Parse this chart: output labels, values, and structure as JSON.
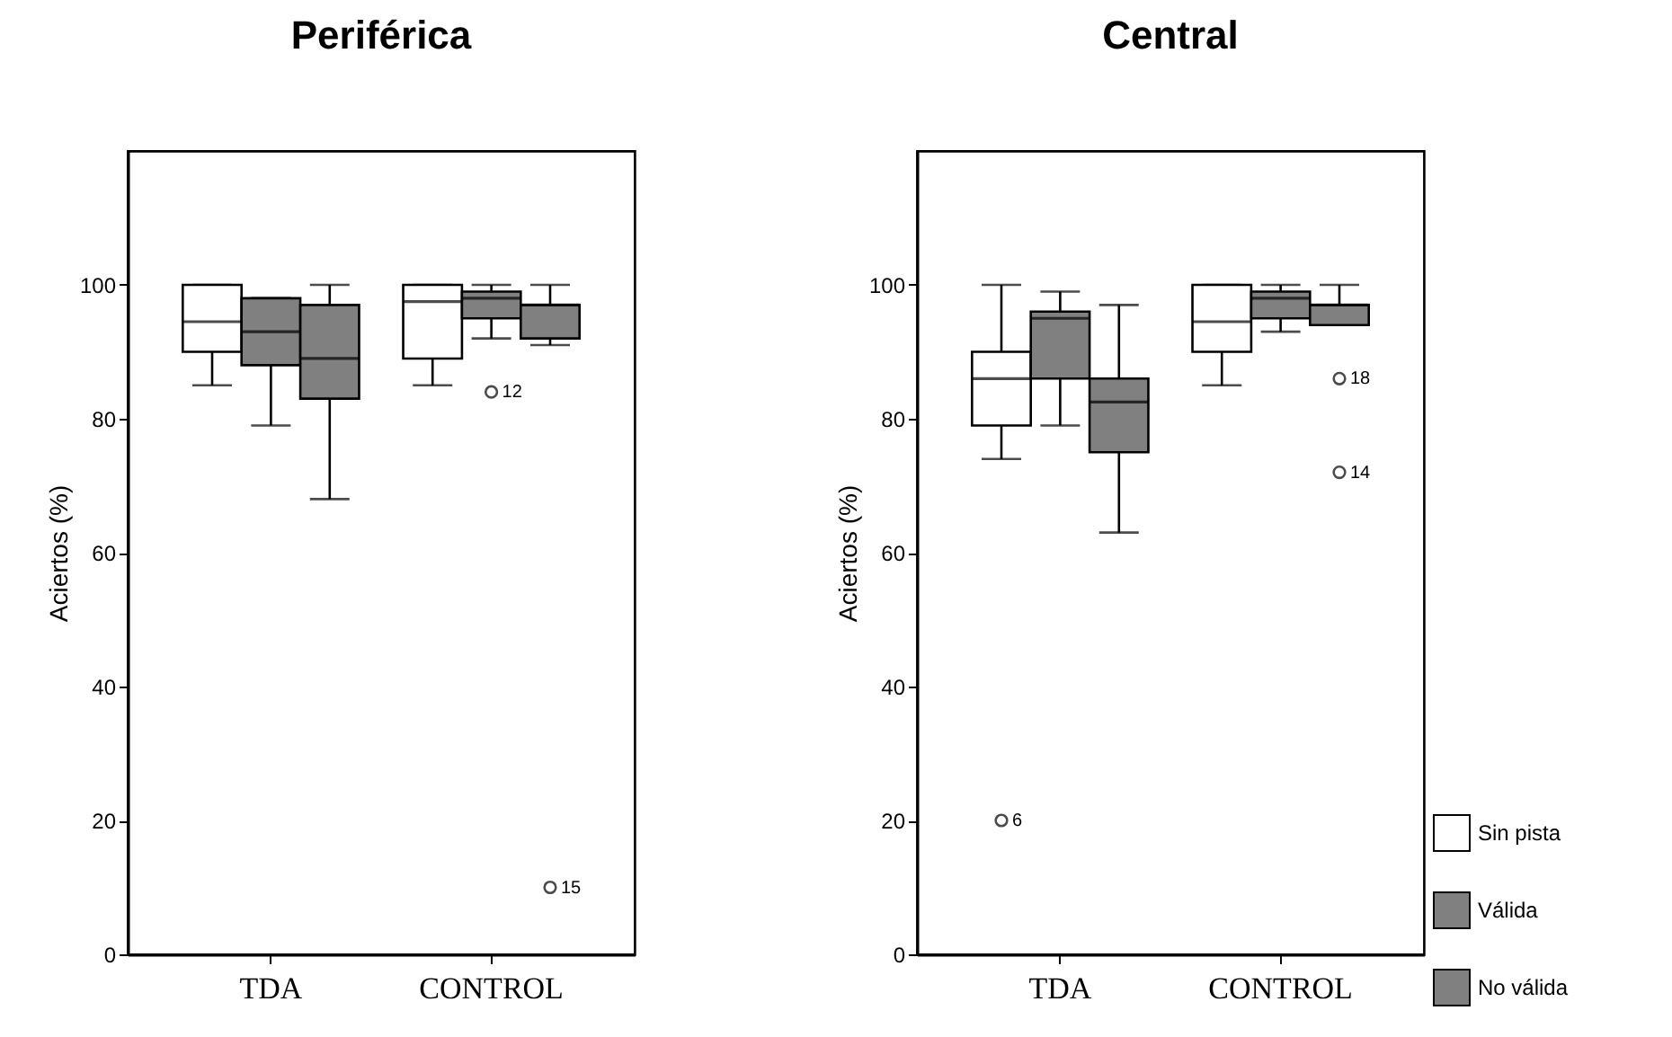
{
  "chart_data": [
    {
      "type": "box",
      "title": "Periférica",
      "ylabel": "Aciertos (%)",
      "categories": [
        "TDA",
        "CONTROL"
      ],
      "ylim": [
        0,
        120
      ],
      "yticks": [
        0,
        20,
        40,
        60,
        80,
        100
      ],
      "grid": false,
      "legend": "bottom right",
      "series": [
        {
          "name": "Sin pista",
          "color": "#ffffff",
          "boxes": [
            {
              "low": 85,
              "q1": 90,
              "median": 94.5,
              "q3": 100,
              "high": 100
            },
            {
              "low": 85,
              "q1": 89,
              "median": 97.5,
              "q3": 100,
              "high": 100
            }
          ]
        },
        {
          "name": "Válida",
          "color": "#808080",
          "boxes": [
            {
              "low": 79,
              "q1": 88,
              "median": 93,
              "q3": 98,
              "high": 98
            },
            {
              "low": 92,
              "q1": 95,
              "median": 98,
              "q3": 99,
              "high": 100,
              "outliers": [
                84
              ]
            }
          ]
        },
        {
          "name": "No válida",
          "color": "#808080",
          "boxes": [
            {
              "low": 68,
              "q1": 83,
              "median": 89,
              "q3": 97,
              "high": 100
            },
            {
              "low": 91,
              "q1": 92,
              "median": 97,
              "q3": 97,
              "high": 100,
              "outliers": [
                10
              ]
            }
          ]
        }
      ],
      "annotations": [
        "12",
        "15"
      ]
    },
    {
      "type": "box",
      "title": "Central",
      "ylabel": "Aciertos (%)",
      "categories": [
        "TDA",
        "CONTROL"
      ],
      "ylim": [
        0,
        120
      ],
      "yticks": [
        0,
        20,
        40,
        60,
        80,
        100
      ],
      "grid": false,
      "legend": "bottom right",
      "series": [
        {
          "name": "Sin pista",
          "color": "#ffffff",
          "boxes": [
            {
              "low": 74,
              "q1": 79,
              "median": 86,
              "q3": 90,
              "high": 100,
              "outliers": [
                20
              ]
            },
            {
              "low": 85,
              "q1": 90,
              "median": 94.5,
              "q3": 100,
              "high": 100
            }
          ]
        },
        {
          "name": "Válida",
          "color": "#808080",
          "boxes": [
            {
              "low": 79,
              "q1": 86,
              "median": 95,
              "q3": 96,
              "high": 99
            },
            {
              "low": 93,
              "q1": 95,
              "median": 98,
              "q3": 99,
              "high": 100
            }
          ]
        },
        {
          "name": "No válida",
          "color": "#808080",
          "boxes": [
            {
              "low": 63,
              "q1": 75,
              "median": 82.5,
              "q3": 86,
              "high": 97
            },
            {
              "low": 94,
              "q1": 94,
              "median": 97,
              "q3": 97,
              "high": 100,
              "outliers": [
                86,
                72
              ]
            }
          ]
        }
      ],
      "annotations": [
        "6",
        "18",
        "14"
      ]
    }
  ]
}
